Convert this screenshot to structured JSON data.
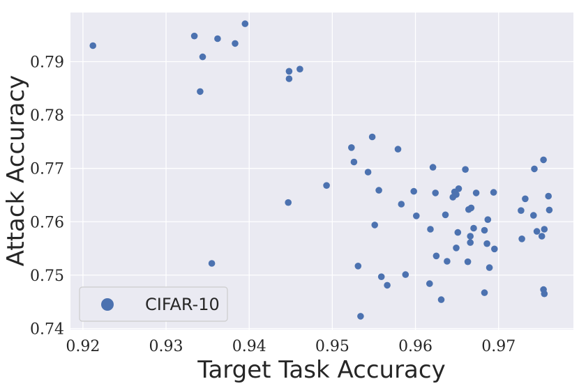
{
  "chart_data": {
    "type": "scatter",
    "xlabel": "Target Task Accuracy",
    "ylabel": "Attack Accuracy",
    "xlim": [
      0.9185,
      0.979
    ],
    "ylim": [
      0.7398,
      0.7992
    ],
    "xticks": [
      0.92,
      0.93,
      0.94,
      0.95,
      0.96,
      0.97
    ],
    "xtick_labels": [
      "0.92",
      "0.93",
      "0.94",
      "0.95",
      "0.96",
      "0.97"
    ],
    "yticks": [
      0.74,
      0.75,
      0.76,
      0.77,
      0.78,
      0.79
    ],
    "ytick_labels": [
      "0.74",
      "0.75",
      "0.76",
      "0.77",
      "0.78",
      "0.79"
    ],
    "grid": true,
    "legend_position": "lower-left",
    "colors": {
      "series": "#4c72b0",
      "background": "#eaeaf2",
      "grid": "#ffffff"
    },
    "series": [
      {
        "name": "CIFAR-10",
        "points": [
          [
            0.9212,
            0.793
          ],
          [
            0.9334,
            0.7948
          ],
          [
            0.9344,
            0.7909
          ],
          [
            0.9341,
            0.7844
          ],
          [
            0.9362,
            0.7943
          ],
          [
            0.9383,
            0.7934
          ],
          [
            0.9395,
            0.7971
          ],
          [
            0.9448,
            0.7882
          ],
          [
            0.9448,
            0.7868
          ],
          [
            0.9461,
            0.7886
          ],
          [
            0.9355,
            0.7522
          ],
          [
            0.9447,
            0.7636
          ],
          [
            0.9493,
            0.7668
          ],
          [
            0.9523,
            0.7739
          ],
          [
            0.9526,
            0.7712
          ],
          [
            0.9531,
            0.7517
          ],
          [
            0.9534,
            0.7423
          ],
          [
            0.9543,
            0.7693
          ],
          [
            0.9548,
            0.7759
          ],
          [
            0.9551,
            0.7594
          ],
          [
            0.9556,
            0.7659
          ],
          [
            0.9559,
            0.7497
          ],
          [
            0.9566,
            0.7481
          ],
          [
            0.9579,
            0.7736
          ],
          [
            0.9583,
            0.7633
          ],
          [
            0.9588,
            0.7501
          ],
          [
            0.9598,
            0.7657
          ],
          [
            0.9601,
            0.7611
          ],
          [
            0.9617,
            0.7484
          ],
          [
            0.9618,
            0.7586
          ],
          [
            0.9621,
            0.7702
          ],
          [
            0.9624,
            0.7654
          ],
          [
            0.9625,
            0.7536
          ],
          [
            0.9631,
            0.7454
          ],
          [
            0.9636,
            0.7613
          ],
          [
            0.9638,
            0.7526
          ],
          [
            0.9645,
            0.7646
          ],
          [
            0.9647,
            0.7656
          ],
          [
            0.9649,
            0.7651
          ],
          [
            0.9649,
            0.7551
          ],
          [
            0.9651,
            0.758
          ],
          [
            0.9652,
            0.7662
          ],
          [
            0.966,
            0.7698
          ],
          [
            0.9663,
            0.7525
          ],
          [
            0.9664,
            0.7623
          ],
          [
            0.9666,
            0.7573
          ],
          [
            0.9666,
            0.7561
          ],
          [
            0.9667,
            0.7626
          ],
          [
            0.967,
            0.7588
          ],
          [
            0.9673,
            0.7654
          ],
          [
            0.9683,
            0.7584
          ],
          [
            0.9683,
            0.7467
          ],
          [
            0.9686,
            0.7559
          ],
          [
            0.9687,
            0.7604
          ],
          [
            0.9689,
            0.7514
          ],
          [
            0.9694,
            0.7655
          ],
          [
            0.9695,
            0.7549
          ],
          [
            0.9727,
            0.7621
          ],
          [
            0.9728,
            0.7568
          ],
          [
            0.9732,
            0.7643
          ],
          [
            0.9742,
            0.7612
          ],
          [
            0.9743,
            0.7699
          ],
          [
            0.9746,
            0.7582
          ],
          [
            0.9752,
            0.7573
          ],
          [
            0.9754,
            0.7716
          ],
          [
            0.9754,
            0.7473
          ],
          [
            0.9755,
            0.7586
          ],
          [
            0.9755,
            0.7465
          ],
          [
            0.976,
            0.7648
          ],
          [
            0.9761,
            0.7622
          ]
        ]
      }
    ]
  }
}
